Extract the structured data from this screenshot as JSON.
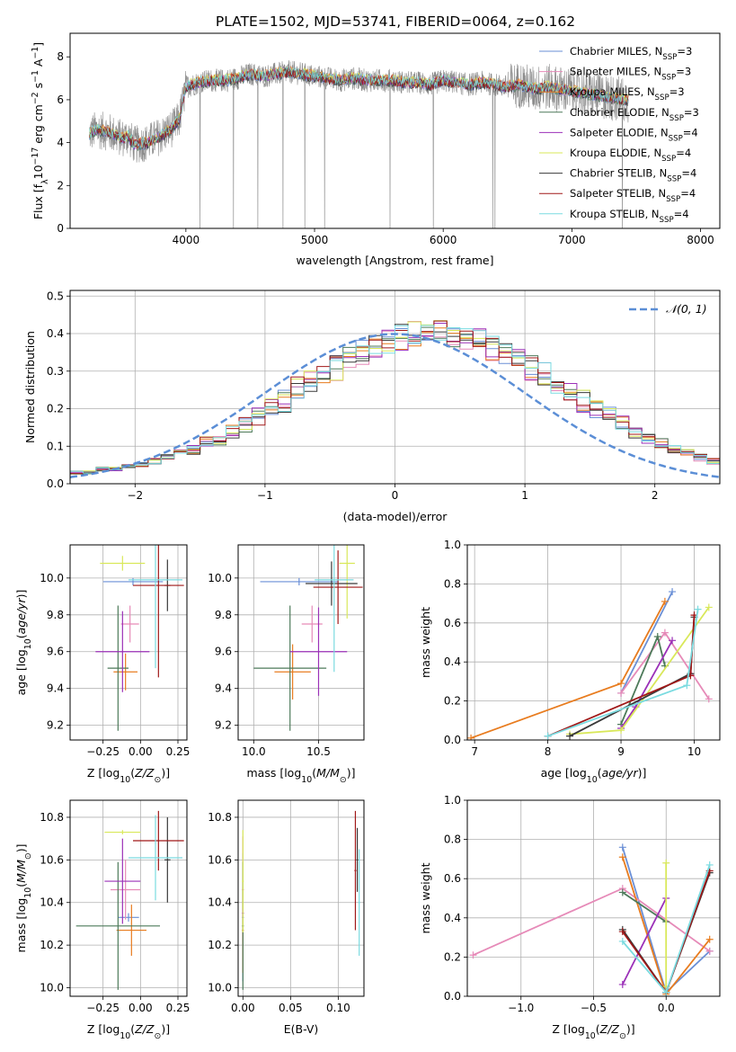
{
  "figure": {
    "title": "PLATE=1502, MJD=53741, FIBERID=0064, z=0.162"
  },
  "colors": {
    "Chabrier MILES": "#6a8fd6",
    "Salpeter MILES": "#e68ab8",
    "Kroupa MILES": "#e87c1f",
    "Chabrier ELODIE": "#4d7a5a",
    "Salpeter ELODIE": "#9b30b8",
    "Kroupa ELODIE": "#d9e85a",
    "Chabrier STELIB": "#3a3a3a",
    "Salpeter STELIB": "#a01818",
    "Kroupa STELIB": "#7adbe0",
    "data": "#8c8c8c",
    "normal": "#5b8ed6"
  },
  "chart_data": [
    {
      "id": "spectrum",
      "type": "line",
      "xlabel": "wavelength [Angstrom, rest frame]",
      "ylabel": "Flux [f",
      "ylabel_sub": "λ",
      "ylabel_tail": "10",
      "ylabel_sup1": "−17",
      "ylabel_tail2": " erg cm",
      "ylabel_sup2": "−2",
      "ylabel_tail3": " s",
      "ylabel_sup3": "−1",
      "ylabel_tail4": " A",
      "ylabel_sup4": "−1",
      "ylabel_end": "]",
      "xlim": [
        3100,
        8150
      ],
      "ylim": [
        0,
        9.1
      ],
      "xticks": [
        "4000",
        "5000",
        "6000",
        "7000",
        "8000"
      ],
      "yticks": [
        "0",
        "2",
        "4",
        "6",
        "8"
      ],
      "legend": [
        {
          "name": "Chabrier MILES",
          "suffix": "=3"
        },
        {
          "name": "Salpeter MILES",
          "suffix": "=3"
        },
        {
          "name": "Kroupa MILES",
          "suffix": "=3"
        },
        {
          "name": "Chabrier ELODIE",
          "suffix": "=3"
        },
        {
          "name": "Salpeter ELODIE",
          "suffix": "=4"
        },
        {
          "name": "Kroupa ELODIE",
          "suffix": "=4"
        },
        {
          "name": "Chabrier STELIB",
          "suffix": "=4"
        },
        {
          "name": "Salpeter STELIB",
          "suffix": "=4"
        },
        {
          "name": "Kroupa STELIB",
          "suffix": "=4"
        }
      ],
      "legend_n": "N",
      "legend_ssp": "SSP",
      "legend_position": "right",
      "shape": {
        "x": [
          3250,
          3300,
          3400,
          3500,
          3550,
          3600,
          3700,
          3800,
          3900,
          3950,
          4000,
          4100,
          4200,
          4300,
          4400,
          4500,
          4600,
          4700,
          4800,
          4900,
          5000,
          5100,
          5200,
          5300,
          5400,
          5500,
          5600,
          5700,
          5800,
          5900,
          6000,
          6100,
          6200,
          6300,
          6400,
          6500,
          6600,
          6700,
          6800,
          6900,
          7000,
          7100,
          7200,
          7300,
          7400
        ],
        "y": [
          4.4,
          4.6,
          4.5,
          4.2,
          4.3,
          3.9,
          4.0,
          4.3,
          4.7,
          5.1,
          6.6,
          6.8,
          6.9,
          6.9,
          7.0,
          7.2,
          7.1,
          7.2,
          7.3,
          7.2,
          7.1,
          7.0,
          6.9,
          7.0,
          6.9,
          6.9,
          6.9,
          6.8,
          6.8,
          6.7,
          6.9,
          6.8,
          6.7,
          6.8,
          6.7,
          6.6,
          6.7,
          6.5,
          6.6,
          6.5,
          6.4,
          6.3,
          6.2,
          6.1,
          6.0
        ]
      },
      "grid": false
    },
    {
      "id": "residuals",
      "type": "line",
      "xlabel": "(data-model)/error",
      "ylabel": "Normed distribution",
      "xlim": [
        -2.5,
        2.5
      ],
      "ylim": [
        0,
        0.515
      ],
      "xticks": [
        "−2",
        "−1",
        "0",
        "1",
        "2"
      ],
      "yticks": [
        "0.0",
        "0.1",
        "0.2",
        "0.3",
        "0.4",
        "0.5"
      ],
      "legend": [
        "𝒩(0, 1)"
      ],
      "legend_position": "top-right",
      "grid": true,
      "bin_edges_start": -2.5,
      "bin_width": 0.1,
      "base_heights": [
        0.03,
        0.03,
        0.04,
        0.04,
        0.05,
        0.05,
        0.06,
        0.07,
        0.08,
        0.09,
        0.11,
        0.12,
        0.14,
        0.16,
        0.18,
        0.2,
        0.22,
        0.25,
        0.27,
        0.29,
        0.31,
        0.33,
        0.35,
        0.36,
        0.38,
        0.39,
        0.4,
        0.4,
        0.4,
        0.4,
        0.39,
        0.38,
        0.36,
        0.35,
        0.33,
        0.31,
        0.29,
        0.27,
        0.25,
        0.22,
        0.2,
        0.18,
        0.16,
        0.14,
        0.12,
        0.11,
        0.09,
        0.08,
        0.07,
        0.06
      ]
    },
    {
      "id": "age-vs-Z",
      "type": "scatter",
      "xlabel": "Z [log",
      "xlabel_sub": "10",
      "xlabel_tail": "(Z/Z",
      "xlabel_sun": "⊙",
      "xlabel_end": ")]",
      "ylabel": "age  [log",
      "ylabel_sub": "10",
      "ylabel_tail": "(age/yr)]",
      "xlim": [
        -0.47,
        0.31
      ],
      "ylim": [
        9.12,
        10.18
      ],
      "xticks": [
        "−0.25",
        "0.00",
        "0.25"
      ],
      "yticks": [
        "9.2",
        "9.4",
        "9.6",
        "9.8",
        "10.0"
      ],
      "grid": true,
      "points": [
        {
          "model": "Chabrier MILES",
          "x": -0.05,
          "xerr": 0.2,
          "y": 9.98,
          "yerr": 0.02
        },
        {
          "model": "Salpeter MILES",
          "x": -0.07,
          "xerr": 0.06,
          "y": 9.75,
          "yerr": 0.1
        },
        {
          "model": "Kroupa MILES",
          "x": -0.1,
          "xerr": 0.08,
          "y": 9.49,
          "yerr": 0.1
        },
        {
          "model": "Chabrier ELODIE",
          "x": -0.15,
          "xerr": 0.07,
          "y": 9.51,
          "yerr": 0.34
        },
        {
          "model": "Salpeter ELODIE",
          "x": -0.12,
          "xerr": 0.18,
          "y": 9.6,
          "yerr": 0.22
        },
        {
          "model": "Kroupa ELODIE",
          "x": -0.12,
          "xerr": 0.15,
          "y": 10.08,
          "yerr": 0.04
        },
        {
          "model": "Chabrier STELIB",
          "x": 0.18,
          "xerr": 0.02,
          "y": 9.96,
          "yerr": 0.14
        },
        {
          "model": "Salpeter STELIB",
          "x": 0.12,
          "xerr": 0.17,
          "y": 9.96,
          "yerr": 0.5
        },
        {
          "model": "Kroupa STELIB",
          "x": 0.1,
          "xerr": 0.18,
          "y": 9.99,
          "yerr": 0.48
        }
      ]
    },
    {
      "id": "age-vs-mass",
      "type": "scatter",
      "xlabel": "mass [log",
      "xlabel_sub": "10",
      "xlabel_tail": "(M/M",
      "xlabel_sun": "⊙",
      "xlabel_end": ")]",
      "xlim": [
        9.88,
        10.85
      ],
      "ylim": [
        9.12,
        10.18
      ],
      "xticks": [
        "10.0",
        "10.5"
      ],
      "yticks": [
        "9.2",
        "9.4",
        "9.6",
        "9.8",
        "10.0"
      ],
      "grid": true,
      "points": [
        {
          "model": "Chabrier MILES",
          "x": 10.35,
          "xerr": 0.3,
          "y": 9.98,
          "yerr": 0.02
        },
        {
          "model": "Salpeter MILES",
          "x": 10.45,
          "xerr": 0.08,
          "y": 9.75,
          "yerr": 0.1
        },
        {
          "model": "Kroupa MILES",
          "x": 10.3,
          "xerr": 0.14,
          "y": 9.49,
          "yerr": 0.15
        },
        {
          "model": "Chabrier ELODIE",
          "x": 10.28,
          "xerr": 0.28,
          "y": 9.51,
          "yerr": 0.34
        },
        {
          "model": "Salpeter ELODIE",
          "x": 10.5,
          "xerr": 0.22,
          "y": 9.6,
          "yerr": 0.24
        },
        {
          "model": "Kroupa ELODIE",
          "x": 10.72,
          "xerr": 0.06,
          "y": 10.08,
          "yerr": 0.3
        },
        {
          "model": "Chabrier STELIB",
          "x": 10.6,
          "xerr": 0.2,
          "y": 9.97,
          "yerr": 0.12
        },
        {
          "model": "Salpeter STELIB",
          "x": 10.65,
          "xerr": 0.19,
          "y": 9.95,
          "yerr": 0.2
        },
        {
          "model": "Kroupa STELIB",
          "x": 10.62,
          "xerr": 0.15,
          "y": 9.99,
          "yerr": 0.5
        }
      ]
    },
    {
      "id": "weight-vs-age",
      "type": "line",
      "xlabel": "age  [log",
      "xlabel_sub": "10",
      "xlabel_tail": "(age/yr)]",
      "ylabel": "mass weight",
      "xlim": [
        6.9,
        10.35
      ],
      "ylim": [
        0,
        1
      ],
      "xticks": [
        "7",
        "8",
        "9",
        "10"
      ],
      "yticks": [
        "0.0",
        "0.2",
        "0.4",
        "0.6",
        "0.8",
        "1.0"
      ],
      "grid": true,
      "series": [
        {
          "model": "Chabrier MILES",
          "x": [
            9.0,
            9.7
          ],
          "y": [
            0.24,
            0.76
          ]
        },
        {
          "model": "Salpeter MILES",
          "x": [
            9.0,
            9.6,
            10.2
          ],
          "y": [
            0.24,
            0.55,
            0.21
          ]
        },
        {
          "model": "Kroupa MILES",
          "x": [
            6.95,
            9.0,
            9.6
          ],
          "y": [
            0.01,
            0.29,
            0.71
          ]
        },
        {
          "model": "Chabrier ELODIE",
          "x": [
            9.0,
            9.5,
            9.6
          ],
          "y": [
            0.08,
            0.53,
            0.38
          ]
        },
        {
          "model": "Salpeter ELODIE",
          "x": [
            9.0,
            9.2,
            9.7
          ],
          "y": [
            0.06,
            0.17,
            0.51
          ]
        },
        {
          "model": "Kroupa ELODIE",
          "x": [
            8.3,
            9.0,
            10.2
          ],
          "y": [
            0.03,
            0.05,
            0.68
          ]
        },
        {
          "model": "Chabrier STELIB",
          "x": [
            8.3,
            9.95,
            10.0
          ],
          "y": [
            0.02,
            0.34,
            0.63
          ]
        },
        {
          "model": "Salpeter STELIB",
          "x": [
            8.0,
            9.95,
            10.0
          ],
          "y": [
            0.02,
            0.33,
            0.64
          ]
        },
        {
          "model": "Kroupa STELIB",
          "x": [
            8.0,
            9.9,
            10.05
          ],
          "y": [
            0.02,
            0.28,
            0.67
          ]
        }
      ]
    },
    {
      "id": "mass-vs-Z",
      "type": "scatter",
      "xlabel": "Z [log",
      "xlabel_sub": "10",
      "xlabel_tail": "(Z/Z",
      "xlabel_sun": "⊙",
      "xlabel_end": ")]",
      "ylabel": "mass [log",
      "ylabel_sub": "10",
      "ylabel_tail": "(M/M",
      "ylabel_sun": "⊙",
      "ylabel_end": ")]",
      "xlim": [
        -0.47,
        0.31
      ],
      "ylim": [
        9.96,
        10.88
      ],
      "xticks": [
        "−0.25",
        "0.00",
        "0.25"
      ],
      "yticks": [
        "10.0",
        "10.2",
        "10.4",
        "10.6",
        "10.8"
      ],
      "grid": true,
      "points": [
        {
          "model": "Chabrier MILES",
          "x": -0.08,
          "xerr": 0.07,
          "y": 10.33,
          "yerr": 0.02
        },
        {
          "model": "Salpeter MILES",
          "x": -0.1,
          "xerr": 0.1,
          "y": 10.46,
          "yerr": 0.14
        },
        {
          "model": "Kroupa MILES",
          "x": -0.06,
          "xerr": 0.1,
          "y": 10.27,
          "yerr": 0.12
        },
        {
          "model": "Chabrier ELODIE",
          "x": -0.15,
          "xerr": 0.28,
          "y": 10.29,
          "yerr": 0.3
        },
        {
          "model": "Salpeter ELODIE",
          "x": -0.12,
          "xerr": 0.12,
          "y": 10.5,
          "yerr": 0.2
        },
        {
          "model": "Kroupa ELODIE",
          "x": -0.12,
          "xerr": 0.12,
          "y": 10.73,
          "yerr": 0.01
        },
        {
          "model": "Chabrier STELIB",
          "x": 0.18,
          "xerr": 0.02,
          "y": 10.6,
          "yerr": 0.2
        },
        {
          "model": "Salpeter STELIB",
          "x": 0.12,
          "xerr": 0.17,
          "y": 10.69,
          "yerr": 0.14
        },
        {
          "model": "Kroupa STELIB",
          "x": 0.1,
          "xerr": 0.18,
          "y": 10.61,
          "yerr": 0.2
        }
      ]
    },
    {
      "id": "mass-vs-ebv",
      "type": "scatter",
      "xlabel": "E(B-V)",
      "xlim": [
        -0.005,
        0.127
      ],
      "ylim": [
        9.96,
        10.88
      ],
      "xticks": [
        "0.00",
        "0.05",
        "0.10"
      ],
      "yticks": [
        "10.0",
        "10.2",
        "10.4",
        "10.6",
        "10.8"
      ],
      "grid": true,
      "points": [
        {
          "model": "Chabrier MILES",
          "x": 0.0,
          "xerr": 0.001,
          "y": 10.33,
          "yerr": 0.3
        },
        {
          "model": "Salpeter MILES",
          "x": 0.0,
          "xerr": 0.001,
          "y": 10.46,
          "yerr": 0.25
        },
        {
          "model": "Kroupa MILES",
          "x": 0.0,
          "xerr": 0.001,
          "y": 10.27,
          "yerr": 0.2
        },
        {
          "model": "Chabrier ELODIE",
          "x": 0.0,
          "xerr": 0.001,
          "y": 10.29,
          "yerr": 0.3
        },
        {
          "model": "Salpeter ELODIE",
          "x": 0.0,
          "xerr": 0.001,
          "y": 10.35,
          "yerr": 0.02
        },
        {
          "model": "Kroupa ELODIE",
          "x": 0.0,
          "xerr": 0.001,
          "y": 10.5,
          "yerr": 0.24
        },
        {
          "model": "Chabrier STELIB",
          "x": 0.12,
          "xerr": 0.001,
          "y": 10.6,
          "yerr": 0.15
        },
        {
          "model": "Salpeter STELIB",
          "x": 0.118,
          "xerr": 0.001,
          "y": 10.55,
          "yerr": 0.28
        },
        {
          "model": "Kroupa STELIB",
          "x": 0.122,
          "xerr": 0.001,
          "y": 10.4,
          "yerr": 0.25
        }
      ]
    },
    {
      "id": "weight-vs-Z",
      "type": "line",
      "xlabel": "Z [log",
      "xlabel_sub": "10",
      "xlabel_tail": "(Z/Z",
      "xlabel_sun": "⊙",
      "xlabel_end": ")]",
      "ylabel": "mass weight",
      "xlim": [
        -1.37,
        0.37
      ],
      "ylim": [
        0,
        1
      ],
      "xticks": [
        "−1.0",
        "−0.5",
        "0.0"
      ],
      "yticks": [
        "0.0",
        "0.2",
        "0.4",
        "0.6",
        "0.8",
        "1.0"
      ],
      "grid": true,
      "series": [
        {
          "model": "Chabrier MILES",
          "x": [
            -0.3,
            0.0,
            0.3
          ],
          "y": [
            0.76,
            0.02,
            0.23
          ]
        },
        {
          "model": "Salpeter MILES",
          "x": [
            -1.33,
            -0.3,
            0.3
          ],
          "y": [
            0.21,
            0.55,
            0.23
          ]
        },
        {
          "model": "Kroupa MILES",
          "x": [
            -0.3,
            0.0,
            0.3
          ],
          "y": [
            0.71,
            0.01,
            0.29
          ]
        },
        {
          "model": "Chabrier ELODIE",
          "x": [
            -0.3,
            0.0
          ],
          "y": [
            0.53,
            0.38
          ]
        },
        {
          "model": "Salpeter ELODIE",
          "x": [
            -0.3,
            0.0
          ],
          "y": [
            0.06,
            0.5
          ]
        },
        {
          "model": "Kroupa ELODIE",
          "x": [
            0.0,
            0.0
          ],
          "y": [
            0.68,
            0.05
          ]
        },
        {
          "model": "Chabrier STELIB",
          "x": [
            -0.3,
            0.0,
            0.3
          ],
          "y": [
            0.34,
            0.02,
            0.63
          ]
        },
        {
          "model": "Salpeter STELIB",
          "x": [
            -0.3,
            0.0,
            0.3
          ],
          "y": [
            0.33,
            0.02,
            0.64
          ]
        },
        {
          "model": "Kroupa STELIB",
          "x": [
            -0.3,
            0.0,
            0.3
          ],
          "y": [
            0.28,
            0.02,
            0.67
          ]
        }
      ]
    }
  ]
}
